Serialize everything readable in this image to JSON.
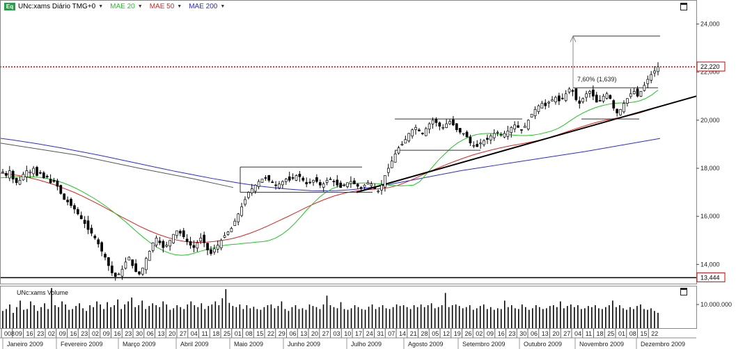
{
  "header": {
    "symbol_label": "UNc:xams Diário TMG+0",
    "indicators": [
      {
        "label": "MAE 20",
        "color": "#1fc71f"
      },
      {
        "label": "MAE 50",
        "color": "#e0201f"
      },
      {
        "label": "MAE 200",
        "color": "#2a2adf"
      }
    ],
    "eq_icon": "Eq"
  },
  "volume_title": "UNc:xams Volume",
  "colors": {
    "mae20": "#1fc71f",
    "mae50": "#e0201f",
    "mae200": "#2a2adf",
    "long_avg": "#555555",
    "current_price_line": "#d40000",
    "current_price_label": "#d40000",
    "min_price_label": "#d40000",
    "candle": "#000000",
    "grid": "#bfbfbf",
    "trendline": "#000000"
  },
  "chart_data": {
    "type": "candlestick",
    "title": "UNc:xams Diário TMG+0",
    "price_axis": {
      "ylim": [
        13.2,
        25.0
      ],
      "ticks": [
        "24,000",
        "22,000",
        "20,000",
        "18,000",
        "16,000",
        "14,000"
      ]
    },
    "current_price": "22,220",
    "min_price_marker": "13,444",
    "annotation": {
      "text": "7,60% (1,639)"
    },
    "volume_axis": {
      "tick": "10.000.000"
    },
    "x_day_labels": [
      "008",
      "09",
      "16",
      "23",
      "02",
      "09",
      "16",
      "23",
      "02",
      "09",
      "16",
      "23",
      "30",
      "06",
      "13",
      "20",
      "27",
      "04",
      "11",
      "18",
      "25",
      "01",
      "08",
      "15",
      "22",
      "29",
      "06",
      "13",
      "20",
      "27",
      "03",
      "10",
      "17",
      "24",
      "31",
      "07",
      "14",
      "21",
      "28",
      "05",
      "12",
      "19",
      "26",
      "02",
      "09",
      "16",
      "23",
      "30",
      "06",
      "13",
      "20",
      "27",
      "04",
      "11",
      "18",
      "25",
      "01",
      "08",
      "15",
      "22"
    ],
    "x_month_labels": [
      "Janeiro 2009",
      "Fevereiro 2009",
      "Março 2009",
      "Abril 2009",
      "Maio 2009",
      "Junho 2009",
      "Julho 2009",
      "Agosto 2009",
      "Setembro 2009",
      "Outubro 2009",
      "Novembro 2009",
      "Dezembro 2009"
    ],
    "closes": [
      17.85,
      17.7,
      17.9,
      17.55,
      17.4,
      17.5,
      17.75,
      17.9,
      17.85,
      18.0,
      17.7,
      17.8,
      17.6,
      17.65,
      17.4,
      17.45,
      17.25,
      16.95,
      16.7,
      16.6,
      16.45,
      16.3,
      16.1,
      15.9,
      15.7,
      15.45,
      15.3,
      15.1,
      14.85,
      14.55,
      14.3,
      13.95,
      13.65,
      13.5,
      13.6,
      13.8,
      14.1,
      14.3,
      13.95,
      13.7,
      13.6,
      13.85,
      14.25,
      14.55,
      14.9,
      15.1,
      14.9,
      14.7,
      14.8,
      15.0,
      15.25,
      15.4,
      15.3,
      15.15,
      14.95,
      14.8,
      14.7,
      14.9,
      15.1,
      14.9,
      14.6,
      14.45,
      14.65,
      14.8,
      15.0,
      15.2,
      15.35,
      15.5,
      15.8,
      16.1,
      16.4,
      16.7,
      17.0,
      17.15,
      17.3,
      17.45,
      17.55,
      17.6,
      17.5,
      17.4,
      17.3,
      17.35,
      17.45,
      17.55,
      17.5,
      17.6,
      17.7,
      17.65,
      17.5,
      17.35,
      17.4,
      17.5,
      17.45,
      17.3,
      17.35,
      17.5,
      17.55,
      17.45,
      17.3,
      17.2,
      17.3,
      17.4,
      17.45,
      17.35,
      17.25,
      17.2,
      17.3,
      17.4,
      17.35,
      17.15,
      17.05,
      17.3,
      17.7,
      18.0,
      18.3,
      18.6,
      18.85,
      19.0,
      19.2,
      19.45,
      19.6,
      19.7,
      19.55,
      19.45,
      19.65,
      19.85,
      20.0,
      19.9,
      19.75,
      19.7,
      19.85,
      19.95,
      19.8,
      19.6,
      19.5,
      19.45,
      19.3,
      19.05,
      18.95,
      18.9,
      19.05,
      19.15,
      19.2,
      19.35,
      19.45,
      19.5,
      19.4,
      19.45,
      19.55,
      19.7,
      19.8,
      19.7,
      19.6,
      19.75,
      20.0,
      20.25,
      20.45,
      20.6,
      20.7,
      20.6,
      20.75,
      20.85,
      20.95,
      20.8,
      20.9,
      21.1,
      21.3,
      21.2,
      20.85,
      20.7,
      20.9,
      21.1,
      21.2,
      21.0,
      20.75,
      20.8,
      21.0,
      21.1,
      20.9,
      20.5,
      20.3,
      20.45,
      20.7,
      20.9,
      21.1,
      21.2,
      21.0,
      21.2,
      21.45,
      21.7,
      21.9,
      22.05,
      22.22
    ],
    "mae20": [
      17.6,
      17.62,
      17.64,
      17.65,
      17.65,
      17.64,
      17.63,
      17.6,
      17.55,
      17.48,
      17.4,
      17.3,
      17.18,
      17.05,
      16.9,
      16.75,
      16.58,
      16.4,
      16.2,
      16.0,
      15.78,
      15.55,
      15.32,
      15.1,
      14.9,
      14.72,
      14.58,
      14.47,
      14.4,
      14.38,
      14.4,
      14.47,
      14.55,
      14.62,
      14.68,
      14.75,
      14.8,
      14.83,
      14.85,
      14.88,
      14.9,
      14.93,
      14.95,
      15.0,
      15.1,
      15.25,
      15.45,
      15.7,
      15.98,
      16.28,
      16.55,
      16.8,
      17.0,
      17.15,
      17.25,
      17.32,
      17.36,
      17.38,
      17.39,
      17.38,
      17.36,
      17.34,
      17.3,
      17.28,
      17.27,
      17.28,
      17.3,
      17.45,
      17.75,
      18.05,
      18.35,
      18.6,
      18.85,
      19.05,
      19.2,
      19.32,
      19.4,
      19.44,
      19.45,
      19.44,
      19.42,
      19.4,
      19.38,
      19.36,
      19.36,
      19.38,
      19.42,
      19.48,
      19.55,
      19.65,
      19.8,
      19.98,
      20.15,
      20.3,
      20.42,
      20.52,
      20.6,
      20.66,
      20.7,
      20.72,
      20.72,
      20.75,
      20.8,
      20.9,
      21.05,
      21.25
    ],
    "mae50": [
      17.8,
      17.75,
      17.7,
      17.62,
      17.53,
      17.42,
      17.3,
      17.15,
      17.0,
      16.82,
      16.63,
      16.43,
      16.22,
      16.0,
      15.8,
      15.6,
      15.42,
      15.26,
      15.13,
      15.02,
      14.95,
      14.92,
      14.92,
      14.95,
      15.0,
      15.07,
      15.17,
      15.3,
      15.45,
      15.62,
      15.8,
      15.98,
      16.17,
      16.36,
      16.54,
      16.7,
      16.84,
      16.95,
      17.03,
      17.08,
      17.12,
      17.15,
      17.2,
      17.3,
      17.45,
      17.62,
      17.8,
      17.97,
      18.13,
      18.28,
      18.42,
      18.55,
      18.66,
      18.76,
      18.85,
      18.93,
      19.0,
      19.07,
      19.15,
      19.25,
      19.37,
      19.5,
      19.63,
      19.75,
      19.87,
      19.97,
      20.05,
      20.12,
      20.2,
      20.3,
      20.42,
      20.55
    ],
    "mae200": [
      19.25,
      19.18,
      19.1,
      19.02,
      18.93,
      18.84,
      18.74,
      18.64,
      18.54,
      18.43,
      18.32,
      18.21,
      18.1,
      17.99,
      17.88,
      17.78,
      17.68,
      17.58,
      17.49,
      17.4,
      17.32,
      17.25,
      17.19,
      17.14,
      17.1,
      17.07,
      17.06,
      17.07,
      17.1,
      17.15,
      17.22,
      17.3,
      17.4,
      17.5,
      17.6,
      17.7,
      17.8,
      17.9,
      17.98,
      18.06,
      18.14,
      18.22,
      18.3,
      18.38,
      18.46,
      18.54,
      18.62,
      18.7,
      18.79,
      18.88,
      18.97,
      19.06,
      19.15,
      19.24
    ],
    "volumes": [
      0.45,
      0.5,
      0.62,
      0.4,
      0.55,
      0.72,
      0.48,
      0.5,
      0.7,
      0.6,
      0.45,
      0.55,
      0.65,
      0.5,
      1.05,
      0.6,
      0.55,
      0.7,
      0.62,
      0.48,
      0.5,
      0.58,
      0.65,
      0.52,
      0.45,
      0.6,
      0.55,
      0.7,
      0.62,
      0.5,
      0.68,
      0.55,
      0.6,
      0.75,
      0.5,
      0.62,
      0.7,
      0.8,
      0.55,
      0.6,
      0.72,
      0.5,
      0.58,
      0.65,
      0.6,
      0.55,
      0.7,
      0.62,
      0.48,
      0.52,
      0.6,
      0.55,
      0.5,
      0.62,
      0.7,
      0.6,
      0.55,
      0.65,
      0.5,
      0.58,
      0.62,
      0.7,
      0.6,
      0.78,
      1.02,
      0.66,
      0.58,
      0.55,
      0.62,
      0.5,
      0.6,
      0.52,
      0.56,
      0.5,
      0.48,
      0.55,
      0.6,
      0.62,
      0.52,
      0.58,
      0.7,
      0.5,
      0.45,
      0.55,
      0.6,
      0.5,
      0.52,
      0.48,
      0.62,
      0.58,
      0.55,
      0.5,
      0.62,
      0.85,
      0.6,
      0.55,
      0.52,
      0.68,
      0.5,
      0.48,
      0.52,
      0.6,
      0.55,
      0.5,
      0.48,
      0.56,
      0.62,
      0.5,
      0.55,
      0.6,
      0.52,
      0.5,
      0.55,
      0.62,
      0.58,
      0.6,
      0.55,
      0.5,
      0.6,
      0.55,
      0.62,
      0.55,
      0.6,
      0.65,
      0.52,
      0.55,
      0.6,
      0.92,
      0.55,
      0.6,
      0.62,
      0.58,
      0.52,
      0.55,
      0.6,
      0.48,
      0.52,
      0.58,
      0.62,
      0.5,
      0.55,
      0.48,
      0.52,
      0.5,
      0.72,
      0.55,
      0.6,
      0.52,
      0.5,
      0.62,
      0.55,
      0.48,
      0.52,
      0.6,
      0.55,
      0.5,
      0.52,
      0.58,
      0.6,
      0.55,
      0.7,
      0.52,
      0.58,
      0.62,
      0.55,
      0.6,
      0.5,
      0.52,
      0.58,
      0.55,
      0.6,
      0.52,
      0.5,
      0.55,
      0.6,
      0.72,
      0.55,
      0.6,
      0.52,
      0.48,
      0.55,
      0.5,
      0.58,
      0.62,
      0.5,
      0.48,
      0.52,
      0.45,
      0.4
    ]
  }
}
